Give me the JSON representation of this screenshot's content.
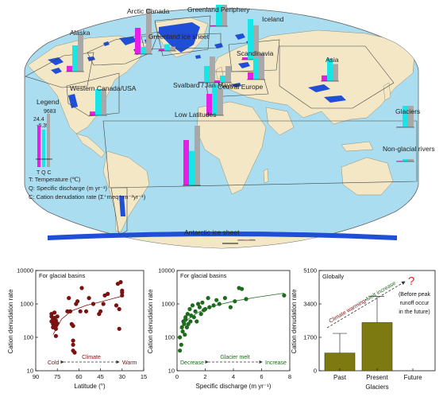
{
  "colors": {
    "ocean": "#a9ddef",
    "land": "#f3e7c6",
    "glacier": "#1f4fd6",
    "temperature": "#e61ee6",
    "discharge": "#18e6e6",
    "denudation": "#a8a8a8",
    "panel_a": "#7a1212",
    "panel_b": "#1e6b1e",
    "panel_c": "#7d7a12"
  },
  "map": {
    "regions": [
      {
        "name": "Alaska",
        "bars": [
          0.12,
          0.55,
          0.78
        ]
      },
      {
        "name": "Arctic Canada",
        "bars": [
          0.55,
          0.15,
          0.95
        ]
      },
      {
        "name": "Greenland Periphery",
        "bars": [
          0.02,
          0.45,
          0.45
        ]
      },
      {
        "name": "Greenland ice sheet",
        "bars": [
          0.04,
          0.14,
          0.09
        ]
      },
      {
        "name": "Iceland",
        "bars": [
          0.05,
          0.85,
          0.72
        ]
      },
      {
        "name": "Svalbard",
        "bars": [
          0.02,
          0.35,
          0.55
        ]
      },
      {
        "name": "Jan Mayen",
        "bars": [
          0.05,
          0.15,
          0.35
        ]
      },
      {
        "name": "Scandinavia",
        "bars": [
          0.15,
          0.45,
          0.55
        ]
      },
      {
        "name": "Asia",
        "bars": [
          0.12,
          0.48,
          0.36
        ]
      },
      {
        "name": "Western Canada/USA",
        "bars": [
          0.08,
          0.55,
          0.55
        ]
      },
      {
        "name": "Central Europe",
        "bars": [
          0.45,
          0.65,
          0.55
        ]
      },
      {
        "name": "Low Latitudes",
        "bars": [
          0.95,
          0.72,
          1.25
        ]
      },
      {
        "name": "Antarctic ice sheet",
        "bars": [
          0.01,
          0.01,
          0.02
        ]
      }
    ],
    "legend": {
      "title": "Legend",
      "max_c": "9683",
      "max_t": "24.4",
      "min_t": "-6.39",
      "bar_letters": "T Q C",
      "notes": [
        "T: Temperature (℃)",
        "Q: Specific discharge (m yr⁻¹)",
        "C: Cation denudation rate (Σ⁺meq⁺ m⁻²yr⁻¹)"
      ]
    },
    "glaciers_label": "Glaciers",
    "glaciers_bars": [
      0.0,
      0.45,
      0.45
    ],
    "nonglacial_label": "Non-glacial rivers",
    "nonglacial_bars": [
      0.0,
      0.05,
      0.05
    ]
  },
  "chart_data": [
    {
      "type": "scatter",
      "title": "For glacial basins",
      "xlabel": "Latitude (°)",
      "ylabel": "Cation denudation rate",
      "x_reversed": true,
      "xlim": [
        90,
        15
      ],
      "xticks": [
        "90",
        "75",
        "60",
        "45",
        "30",
        "15"
      ],
      "y_log": true,
      "ylim": [
        10,
        10000
      ],
      "yticks": [
        "10",
        "100",
        "1000",
        "10000"
      ],
      "arrow_text": "Climate",
      "arrow_left": "Cold",
      "arrow_right": "Warm",
      "trend": [
        [
          78,
          120
        ],
        [
          72,
          350
        ],
        [
          65,
          620
        ],
        [
          55,
          900
        ],
        [
          45,
          1150
        ],
        [
          35,
          1500
        ],
        [
          30,
          1700
        ]
      ],
      "points": [
        [
          79,
          500
        ],
        [
          79,
          420
        ],
        [
          79,
          300
        ],
        [
          78,
          350
        ],
        [
          78,
          250
        ],
        [
          78,
          200
        ],
        [
          77,
          550
        ],
        [
          77,
          380
        ],
        [
          77,
          280
        ],
        [
          76,
          320
        ],
        [
          76,
          230
        ],
        [
          76,
          180
        ],
        [
          76,
          110
        ],
        [
          75,
          420
        ],
        [
          75,
          260
        ],
        [
          68,
          600
        ],
        [
          67,
          1500
        ],
        [
          66,
          600
        ],
        [
          65,
          250
        ],
        [
          64,
          220
        ],
        [
          64,
          80
        ],
        [
          64,
          60
        ],
        [
          64,
          40
        ],
        [
          63,
          35
        ],
        [
          62,
          1000
        ],
        [
          61,
          1200
        ],
        [
          59,
          600
        ],
        [
          58,
          3000
        ],
        [
          55,
          600
        ],
        [
          53,
          1500
        ],
        [
          50,
          1000
        ],
        [
          46,
          500
        ],
        [
          45,
          600
        ],
        [
          43,
          1000
        ],
        [
          42,
          1800
        ],
        [
          40,
          2000
        ],
        [
          33,
          4000
        ],
        [
          31,
          4500
        ],
        [
          30,
          2500
        ],
        [
          30,
          2200
        ],
        [
          30,
          1800
        ],
        [
          32,
          700
        ],
        [
          32,
          180
        ],
        [
          34,
          900
        ]
      ]
    },
    {
      "type": "scatter",
      "title": "For glacial basins",
      "xlabel": "Specific discharge (m yr⁻¹)",
      "ylabel": "Cation denudation rate",
      "xlim": [
        0,
        8
      ],
      "xticks": [
        "0",
        "2",
        "4",
        "6",
        "8"
      ],
      "y_log": true,
      "ylim": [
        10,
        10000
      ],
      "yticks": [
        "10",
        "100",
        "1000",
        "10000"
      ],
      "arrow_text": "Glacier melt",
      "arrow_left": "Decrease",
      "arrow_right": "Increase",
      "trend": [
        [
          0.2,
          180
        ],
        [
          0.8,
          350
        ],
        [
          1.5,
          560
        ],
        [
          2.5,
          850
        ],
        [
          4,
          1200
        ],
        [
          5.5,
          1550
        ],
        [
          7.6,
          2100
        ]
      ],
      "points": [
        [
          0.2,
          40
        ],
        [
          0.2,
          100
        ],
        [
          0.3,
          60
        ],
        [
          0.35,
          200
        ],
        [
          0.4,
          150
        ],
        [
          0.45,
          300
        ],
        [
          0.5,
          250
        ],
        [
          0.55,
          120
        ],
        [
          0.6,
          400
        ],
        [
          0.6,
          350
        ],
        [
          0.7,
          200
        ],
        [
          0.75,
          500
        ],
        [
          0.8,
          250
        ],
        [
          0.9,
          700
        ],
        [
          0.95,
          300
        ],
        [
          1.0,
          450
        ],
        [
          1.1,
          900
        ],
        [
          1.2,
          400
        ],
        [
          1.3,
          600
        ],
        [
          1.4,
          300
        ],
        [
          1.5,
          1000
        ],
        [
          1.6,
          800
        ],
        [
          1.7,
          500
        ],
        [
          1.8,
          1100
        ],
        [
          1.9,
          650
        ],
        [
          2.0,
          700
        ],
        [
          2.2,
          1500
        ],
        [
          2.3,
          800
        ],
        [
          2.6,
          900
        ],
        [
          2.8,
          1300
        ],
        [
          3.0,
          1000
        ],
        [
          3.4,
          1500
        ],
        [
          3.8,
          800
        ],
        [
          4.1,
          1200
        ],
        [
          4.4,
          3000
        ],
        [
          4.6,
          2800
        ],
        [
          4.9,
          1400
        ],
        [
          7.6,
          1800
        ]
      ]
    },
    {
      "type": "bar",
      "title": "Globally",
      "ylabel": "Cation denudation rate",
      "ylim": [
        0,
        5100
      ],
      "yticks": [
        "0",
        "1700",
        "3400",
        "5100"
      ],
      "categories": [
        "Past",
        "Present",
        "Future"
      ],
      "category_sub": "Glaciers",
      "values": [
        900,
        2450,
        null
      ],
      "errors_upper": [
        1900,
        3780,
        null
      ],
      "arrow_text_a": "Climate warming",
      "arrow_text_sep": "•",
      "arrow_text_b": "Melt increase",
      "question_mark": "?",
      "future_note": [
        "(Before peak",
        "runoff occur",
        "in the future)"
      ]
    }
  ]
}
